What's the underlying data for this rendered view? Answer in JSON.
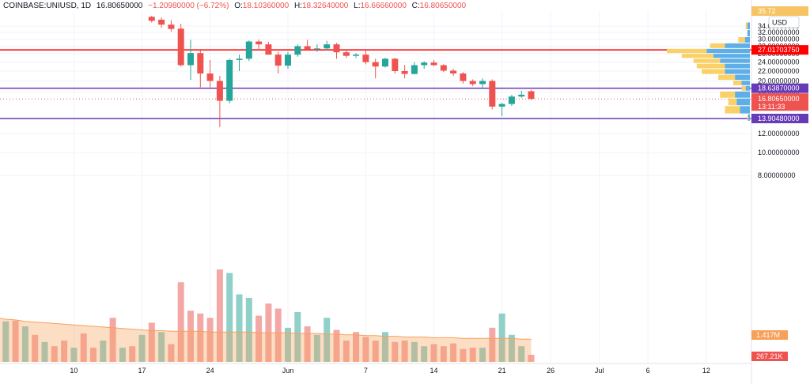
{
  "header": {
    "symbol": "COINBASE:UNIUSD, 1D",
    "last": "16.80650000",
    "change": "−1.20980000 (−6.72%)",
    "o_label": "O:",
    "o_value": "18.10360000",
    "h_label": "H:",
    "h_value": "18.32640000",
    "l_label": "L:",
    "l_value": "16.66660000",
    "c_label": "C:",
    "c_value": "16.80650000"
  },
  "colors": {
    "up": "#26a69a",
    "down": "#ef5350",
    "up_vol": "#8fd0c9",
    "down_vol": "#f4a8a6",
    "hline_red": "#ff0000",
    "hline_purple": "#673ab7",
    "profile_up": "#5eaee8",
    "profile_down": "#f9d168"
  },
  "chart_data": {
    "type": "candlestick",
    "title": "COINBASE:UNIUSD, 1D",
    "currency_label": "USD",
    "y_axis": {
      "ticks": [
        "34.00000000",
        "32.00000000",
        "30.00000000",
        "28.00000000",
        "26.00000000",
        "24.00000000",
        "22.00000000",
        "20.00000000",
        "18.00000000",
        "12.00000000",
        "10.00000000",
        "8.00000000"
      ],
      "ylim": [
        7,
        35.5
      ],
      "scale": "log"
    },
    "x_axis": {
      "ticks": [
        "10",
        "17",
        "24",
        "Jun",
        "7",
        "14",
        "21",
        "26",
        "Jul",
        "6",
        "12"
      ]
    },
    "horizontal_lines": [
      {
        "price": 27.017,
        "label": "27.01703750",
        "color": "#ff0000"
      },
      {
        "price": 18.6387,
        "label": "18.63870000",
        "color": "#673ab7"
      },
      {
        "price": 13.9048,
        "label": "13.90480000",
        "color": "#673ab7"
      }
    ],
    "price_badge": {
      "price": 16.8065,
      "label": "16.80650000",
      "countdown": "13:11:33",
      "color": "#ef5350"
    },
    "top_badge": {
      "label": "35.72"
    },
    "volume_labels": [
      {
        "label": "1.417M"
      },
      {
        "label": "267.21K"
      }
    ],
    "candles": [
      {
        "t": 16,
        "o": 37.2,
        "h": 37.6,
        "l": 35.2,
        "c": 35.8
      },
      {
        "t": 17,
        "o": 36.2,
        "h": 37.0,
        "l": 33.5,
        "c": 34.5
      },
      {
        "t": 18,
        "o": 34.5,
        "h": 36.0,
        "l": 32.2,
        "c": 33.1
      },
      {
        "t": 19,
        "o": 33.2,
        "h": 34.8,
        "l": 23.0,
        "c": 23.3
      },
      {
        "t": 20,
        "o": 23.3,
        "h": 29.8,
        "l": 20.2,
        "c": 26.2
      },
      {
        "t": 21,
        "o": 26.2,
        "h": 27.0,
        "l": 18.8,
        "c": 21.5
      },
      {
        "t": 22,
        "o": 21.5,
        "h": 24.5,
        "l": 18.8,
        "c": 20.0
      },
      {
        "t": 23,
        "o": 20.0,
        "h": 21.0,
        "l": 12.8,
        "c": 16.5
      },
      {
        "t": 24,
        "o": 16.5,
        "h": 24.8,
        "l": 16.1,
        "c": 24.5
      },
      {
        "t": 25,
        "o": 24.5,
        "h": 25.8,
        "l": 22.0,
        "c": 24.8
      },
      {
        "t": 26,
        "o": 24.8,
        "h": 29.6,
        "l": 24.3,
        "c": 29.3
      },
      {
        "t": 27,
        "o": 29.3,
        "h": 29.8,
        "l": 26.8,
        "c": 28.5
      },
      {
        "t": 28,
        "o": 28.5,
        "h": 29.2,
        "l": 25.8,
        "c": 25.8
      },
      {
        "t": 29,
        "o": 25.8,
        "h": 26.5,
        "l": 21.5,
        "c": 23.2
      },
      {
        "t": 30,
        "o": 23.2,
        "h": 26.5,
        "l": 22.5,
        "c": 25.8
      },
      {
        "t": 31,
        "o": 25.8,
        "h": 28.5,
        "l": 25.3,
        "c": 28.0
      },
      {
        "t": 32,
        "o": 28.0,
        "h": 29.8,
        "l": 26.8,
        "c": 27.2
      },
      {
        "t": 33,
        "o": 27.2,
        "h": 28.5,
        "l": 26.5,
        "c": 27.4
      },
      {
        "t": 34,
        "o": 27.4,
        "h": 29.5,
        "l": 26.9,
        "c": 28.5
      },
      {
        "t": 35,
        "o": 28.5,
        "h": 28.9,
        "l": 24.8,
        "c": 26.4
      },
      {
        "t": 36,
        "o": 26.4,
        "h": 27.2,
        "l": 25.0,
        "c": 25.5
      },
      {
        "t": 37,
        "o": 25.5,
        "h": 26.2,
        "l": 25.0,
        "c": 25.8
      },
      {
        "t": 38,
        "o": 25.8,
        "h": 27.0,
        "l": 23.5,
        "c": 24.0
      },
      {
        "t": 39,
        "o": 24.0,
        "h": 24.8,
        "l": 20.5,
        "c": 23.0
      },
      {
        "t": 40,
        "o": 23.0,
        "h": 25.0,
        "l": 22.8,
        "c": 24.8
      },
      {
        "t": 41,
        "o": 24.8,
        "h": 25.0,
        "l": 21.5,
        "c": 22.0
      },
      {
        "t": 42,
        "o": 22.0,
        "h": 23.3,
        "l": 20.5,
        "c": 21.4
      },
      {
        "t": 43,
        "o": 21.4,
        "h": 24.0,
        "l": 21.3,
        "c": 23.3
      },
      {
        "t": 44,
        "o": 23.3,
        "h": 24.2,
        "l": 22.5,
        "c": 23.9
      },
      {
        "t": 45,
        "o": 23.9,
        "h": 24.5,
        "l": 23.1,
        "c": 23.3
      },
      {
        "t": 46,
        "o": 23.3,
        "h": 23.5,
        "l": 21.8,
        "c": 22.1
      },
      {
        "t": 47,
        "o": 22.1,
        "h": 22.5,
        "l": 21.0,
        "c": 21.5
      },
      {
        "t": 48,
        "o": 21.5,
        "h": 21.8,
        "l": 19.5,
        "c": 20.0
      },
      {
        "t": 49,
        "o": 20.0,
        "h": 20.3,
        "l": 19.0,
        "c": 19.4
      },
      {
        "t": 50,
        "o": 19.4,
        "h": 20.5,
        "l": 18.8,
        "c": 20.0
      },
      {
        "t": 51,
        "o": 20.0,
        "h": 20.3,
        "l": 15.2,
        "c": 15.6
      },
      {
        "t": 52,
        "o": 15.6,
        "h": 16.2,
        "l": 14.2,
        "c": 16.0
      },
      {
        "t": 53,
        "o": 16.0,
        "h": 17.5,
        "l": 15.7,
        "c": 17.2
      },
      {
        "t": 54,
        "o": 17.2,
        "h": 18.2,
        "l": 17.0,
        "c": 17.5
      },
      {
        "t": 55,
        "o": 18.1036,
        "h": 18.3264,
        "l": 16.6666,
        "c": 16.8065
      }
    ],
    "volume": [
      {
        "t": 0,
        "v": 0.62,
        "up": false
      },
      {
        "t": 1,
        "v": 0.57,
        "up": true
      },
      {
        "t": 2,
        "v": 0.58,
        "up": false
      },
      {
        "t": 3,
        "v": 0.5,
        "up": true
      },
      {
        "t": 4,
        "v": 0.38,
        "up": false
      },
      {
        "t": 5,
        "v": 0.28,
        "up": true
      },
      {
        "t": 6,
        "v": 0.22,
        "up": false
      },
      {
        "t": 7,
        "v": 0.3,
        "up": false
      },
      {
        "t": 8,
        "v": 0.2,
        "up": true
      },
      {
        "t": 9,
        "v": 0.4,
        "up": false
      },
      {
        "t": 10,
        "v": 0.2,
        "up": false
      },
      {
        "t": 11,
        "v": 0.3,
        "up": true
      },
      {
        "t": 12,
        "v": 0.62,
        "up": false
      },
      {
        "t": 13,
        "v": 0.2,
        "up": true
      },
      {
        "t": 14,
        "v": 0.22,
        "up": false
      },
      {
        "t": 15,
        "v": 0.38,
        "up": true
      },
      {
        "t": 16,
        "v": 0.55,
        "up": false
      },
      {
        "t": 17,
        "v": 0.42,
        "up": true
      },
      {
        "t": 18,
        "v": 0.25,
        "up": false
      },
      {
        "t": 19,
        "v": 1.12,
        "up": false
      },
      {
        "t": 20,
        "v": 0.72,
        "up": false
      },
      {
        "t": 21,
        "v": 0.68,
        "up": false
      },
      {
        "t": 22,
        "v": 0.62,
        "up": false
      },
      {
        "t": 23,
        "v": 1.3,
        "up": false
      },
      {
        "t": 24,
        "v": 1.25,
        "up": true
      },
      {
        "t": 25,
        "v": 0.95,
        "up": true
      },
      {
        "t": 26,
        "v": 0.9,
        "up": true
      },
      {
        "t": 27,
        "v": 0.65,
        "up": false
      },
      {
        "t": 28,
        "v": 0.82,
        "up": false
      },
      {
        "t": 29,
        "v": 0.75,
        "up": false
      },
      {
        "t": 30,
        "v": 0.48,
        "up": true
      },
      {
        "t": 31,
        "v": 0.7,
        "up": true
      },
      {
        "t": 32,
        "v": 0.5,
        "up": false
      },
      {
        "t": 33,
        "v": 0.38,
        "up": true
      },
      {
        "t": 34,
        "v": 0.62,
        "up": true
      },
      {
        "t": 35,
        "v": 0.45,
        "up": false
      },
      {
        "t": 36,
        "v": 0.3,
        "up": false
      },
      {
        "t": 37,
        "v": 0.42,
        "up": false
      },
      {
        "t": 38,
        "v": 0.35,
        "up": false
      },
      {
        "t": 39,
        "v": 0.3,
        "up": false
      },
      {
        "t": 40,
        "v": 0.42,
        "up": true
      },
      {
        "t": 41,
        "v": 0.28,
        "up": false
      },
      {
        "t": 42,
        "v": 0.3,
        "up": false
      },
      {
        "t": 43,
        "v": 0.28,
        "up": true
      },
      {
        "t": 44,
        "v": 0.22,
        "up": true
      },
      {
        "t": 45,
        "v": 0.25,
        "up": false
      },
      {
        "t": 46,
        "v": 0.22,
        "up": false
      },
      {
        "t": 47,
        "v": 0.26,
        "up": false
      },
      {
        "t": 48,
        "v": 0.18,
        "up": false
      },
      {
        "t": 49,
        "v": 0.2,
        "up": false
      },
      {
        "t": 50,
        "v": 0.2,
        "up": true
      },
      {
        "t": 51,
        "v": 0.48,
        "up": false
      },
      {
        "t": 52,
        "v": 0.68,
        "up": true
      },
      {
        "t": 53,
        "v": 0.38,
        "up": true
      },
      {
        "t": 54,
        "v": 0.22,
        "up": true
      },
      {
        "t": 55,
        "v": 0.1,
        "up": false
      }
    ],
    "volume_ma": [
      0.62,
      0.6,
      0.59,
      0.57,
      0.56,
      0.55,
      0.54,
      0.53,
      0.52,
      0.51,
      0.5,
      0.49,
      0.48,
      0.47,
      0.46,
      0.45,
      0.44,
      0.44,
      0.43,
      0.43,
      0.43,
      0.43,
      0.42,
      0.42,
      0.42,
      0.42,
      0.42,
      0.41,
      0.41,
      0.41,
      0.41,
      0.4,
      0.4,
      0.4,
      0.39,
      0.39,
      0.38,
      0.38,
      0.37,
      0.37,
      0.36,
      0.36,
      0.35,
      0.35,
      0.35,
      0.34,
      0.34,
      0.34,
      0.33,
      0.33,
      0.33,
      0.33,
      0.33,
      0.33,
      0.32,
      0.32
    ],
    "volume_profile": [
      {
        "p0": 33.0,
        "p1": 35.5,
        "up": 0.03,
        "down": 0.02
      },
      {
        "p0": 30.8,
        "p1": 33.0,
        "up": 0.03,
        "down": 0.0
      },
      {
        "p0": 29.0,
        "p1": 30.8,
        "up": 0.06,
        "down": 0.08
      },
      {
        "p0": 27.5,
        "p1": 29.0,
        "up": 0.3,
        "down": 0.18
      },
      {
        "p0": 26.2,
        "p1": 27.5,
        "up": 0.52,
        "down": 0.48
      },
      {
        "p0": 25.0,
        "p1": 26.2,
        "up": 0.44,
        "down": 0.38
      },
      {
        "p0": 23.8,
        "p1": 25.0,
        "up": 0.36,
        "down": 0.32
      },
      {
        "p0": 22.6,
        "p1": 23.8,
        "up": 0.3,
        "down": 0.34
      },
      {
        "p0": 21.4,
        "p1": 22.6,
        "up": 0.3,
        "down": 0.28
      },
      {
        "p0": 20.2,
        "p1": 21.4,
        "up": 0.18,
        "down": 0.2
      },
      {
        "p0": 19.2,
        "p1": 20.2,
        "up": 0.1,
        "down": 0.1
      },
      {
        "p0": 18.2,
        "p1": 19.2,
        "up": 0.05,
        "down": 0.05
      },
      {
        "p0": 17.0,
        "p1": 18.2,
        "up": 0.18,
        "down": 0.18
      },
      {
        "p0": 15.8,
        "p1": 17.0,
        "up": 0.16,
        "down": 0.1
      },
      {
        "p0": 14.6,
        "p1": 15.8,
        "up": 0.12,
        "down": 0.18
      },
      {
        "p0": 13.6,
        "p1": 14.6,
        "up": 0.02,
        "down": 0.01
      }
    ]
  }
}
